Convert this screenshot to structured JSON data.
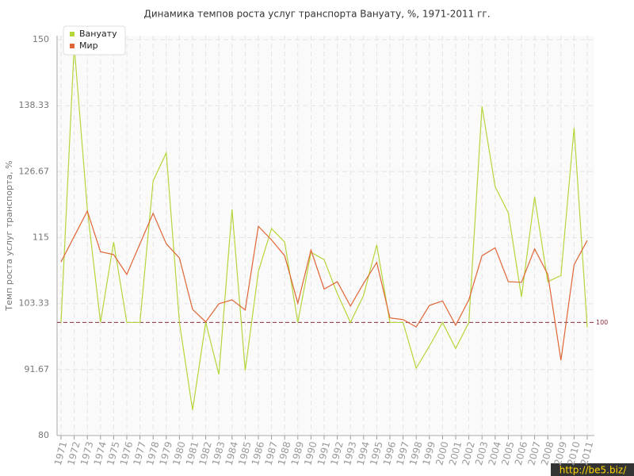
{
  "chart_data": {
    "type": "line",
    "title": "Динамика темпов роста услуг транспорта Вануату, %, 1971-2011 гг.",
    "y_label": "Темп роста услуг транспорта, %",
    "categories": [
      "1971",
      "1972",
      "1973",
      "1974",
      "1975",
      "1976",
      "1977",
      "1978",
      "1979",
      "1980",
      "1981",
      "1982",
      "1983",
      "1984",
      "1985",
      "1986",
      "1987",
      "1988",
      "1989",
      "1990",
      "1991",
      "1992",
      "1993",
      "1994",
      "1995",
      "1996",
      "1997",
      "1998",
      "1999",
      "2000",
      "2001",
      "2002",
      "2003",
      "2004",
      "2005",
      "2006",
      "2007",
      "2008",
      "2009",
      "2010",
      "2011"
    ],
    "series": [
      {
        "name": "Вануату",
        "color": "#b5d63a",
        "values": [
          100,
          149,
          120,
          100,
          114.2,
          100,
          100,
          125,
          130,
          100,
          84.5,
          100,
          90.8,
          120,
          91.5,
          109,
          116.6,
          114.2,
          100,
          112.4,
          111.1,
          105.1,
          100,
          104.8,
          113.7,
          100,
          100,
          91.9,
          95.8,
          100,
          95.4,
          100,
          138.2,
          124,
          119.4,
          104.5,
          122.2,
          107.2,
          108.3,
          134.4,
          99.1
        ]
      },
      {
        "name": "Мир",
        "color": "#e06536",
        "values": [
          110.7,
          115.2,
          119.7,
          112.5,
          112,
          108.5,
          113.9,
          119.3,
          113.9,
          111.4,
          102.3,
          100.1,
          103.3,
          104,
          102.2,
          117,
          114.6,
          111.8,
          103.4,
          112.8,
          105.9,
          107.2,
          102.9,
          106.9,
          110.6,
          100.8,
          100.5,
          99.2,
          103,
          103.8,
          99.5,
          104,
          111.8,
          113.2,
          107.2,
          107.1,
          113,
          108.5,
          93.3,
          110.2,
          114.5
        ]
      }
    ],
    "ylim": [
      80,
      150
    ],
    "yticks": [
      80,
      91.67,
      103.33,
      115,
      126.67,
      138.33,
      150
    ],
    "reference_line": 100,
    "reference_color": "#8b2a3a",
    "grid": true,
    "legend": "top-left",
    "watermark": "http://be5.biz/"
  }
}
